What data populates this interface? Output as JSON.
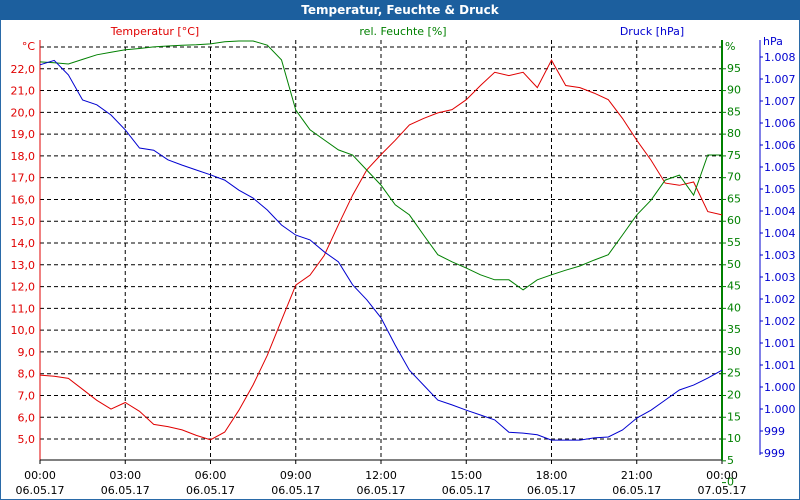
{
  "title": "Temperatur, Feuchte & Druck",
  "colors": {
    "temperature": "#e00000",
    "humidity": "#008000",
    "pressure": "#0000d0",
    "title_bar": "#1c5f9e"
  },
  "chart_data": {
    "type": "line",
    "title": "Temperatur, Feuchte & Druck",
    "legend": [
      "Temperatur [°C]",
      "rel. Feuchte [%]",
      "Druck [hPa]"
    ],
    "axes": {
      "temperature": {
        "unit": "°C",
        "ticks": [
          "22,0",
          "21,0",
          "20,0",
          "19,0",
          "18,0",
          "17,0",
          "16,0",
          "15,0",
          "14,0",
          "13,0",
          "12,0",
          "11,0",
          "10,0",
          "9,0",
          "8,0",
          "7,0",
          "6,0",
          "5,0"
        ],
        "range": [
          4.1,
          23.0
        ]
      },
      "humidity": {
        "unit": "%",
        "ticks": [
          "95",
          "90",
          "85",
          "80",
          "75",
          "70",
          "65",
          "60",
          "55",
          "50",
          "45",
          "40",
          "35",
          "30",
          "25",
          "20",
          "15",
          "10",
          "5",
          "0"
        ],
        "range": [
          0,
          98.6
        ]
      },
      "pressure": {
        "unit": "hPa",
        "ticks": [
          "1.008",
          "1.007",
          "1.007",
          "1.006",
          "1.006",
          "1.005",
          "1.005",
          "1.004",
          "1.004",
          "1.003",
          "1.003",
          "1.002",
          "1.002",
          "1.001",
          "1.001",
          "1.000",
          "1.000",
          "999",
          "999"
        ],
        "range": [
          999.0,
          1008.5
        ]
      }
    },
    "x_ticks": [
      {
        "time": "00:00",
        "date": "06.05.17"
      },
      {
        "time": "03:00",
        "date": "06.05.17"
      },
      {
        "time": "06:00",
        "date": "06.05.17"
      },
      {
        "time": "09:00",
        "date": "06.05.17"
      },
      {
        "time": "12:00",
        "date": "06.05.17"
      },
      {
        "time": "15:00",
        "date": "06.05.17"
      },
      {
        "time": "18:00",
        "date": "06.05.17"
      },
      {
        "time": "21:00",
        "date": "06.05.17"
      },
      {
        "time": "00:00",
        "date": "07.05.17"
      }
    ],
    "x_hours": [
      0,
      0.5,
      1,
      1.5,
      2,
      2.5,
      3,
      3.5,
      4,
      4.5,
      5,
      5.5,
      6,
      6.5,
      7,
      7.5,
      8,
      8.5,
      9,
      9.5,
      10,
      10.5,
      11,
      11.5,
      12,
      12.5,
      13,
      13.5,
      14,
      14.5,
      15,
      15.5,
      16,
      16.5,
      17,
      17.5,
      18,
      18.5,
      19,
      19.5,
      20,
      20.5,
      21,
      21.5,
      22,
      22.5,
      23,
      23.5,
      24
    ],
    "series": [
      {
        "name": "Temperatur [°C]",
        "axis": "temperature",
        "values": [
          8.05,
          8.0,
          7.9,
          7.4,
          6.9,
          6.5,
          6.8,
          6.4,
          5.8,
          5.7,
          5.55,
          5.3,
          5.1,
          5.45,
          6.45,
          7.6,
          8.95,
          10.55,
          12.15,
          12.6,
          13.5,
          14.9,
          16.25,
          17.4,
          18.1,
          18.75,
          19.45,
          19.75,
          20.0,
          20.15,
          20.6,
          21.25,
          21.85,
          21.7,
          21.85,
          21.15,
          22.4,
          21.25,
          21.15,
          20.9,
          20.6,
          19.75,
          18.75,
          17.85,
          16.8,
          16.7,
          16.85,
          15.5,
          15.35
        ]
      },
      {
        "name": "rel. Feuchte [%]",
        "axis": "humidity",
        "values": [
          95,
          94.8,
          94.5,
          95.6,
          96.7,
          97.3,
          97.9,
          98.2,
          98.6,
          98.8,
          99,
          99.1,
          99.3,
          99.8,
          100,
          100,
          99,
          95.5,
          83.5,
          78.8,
          76.4,
          74,
          72.8,
          69.2,
          65.6,
          60.9,
          58.5,
          53.7,
          49,
          47.3,
          45.8,
          44.2,
          43,
          43,
          40.6,
          43,
          44.2,
          45.3,
          46.3,
          47.7,
          49,
          53.7,
          58.5,
          62,
          66.8,
          68,
          63.2,
          72.8,
          72.8
        ]
      },
      {
        "name": "Druck [hPa]",
        "axis": "pressure",
        "values": [
          1008.1,
          1008.2,
          1007.87,
          1007.3,
          1007.19,
          1006.96,
          1006.62,
          1006.21,
          1006.16,
          1005.94,
          1005.82,
          1005.71,
          1005.6,
          1005.48,
          1005.25,
          1005.07,
          1004.8,
          1004.46,
          1004.23,
          1004.12,
          1003.85,
          1003.62,
          1003.1,
          1002.76,
          1002.35,
          1001.73,
          1001.16,
          1000.82,
          1000.48,
          1000.37,
          1000.25,
          1000.14,
          1000.03,
          999.75,
          999.73,
          999.69,
          999.57,
          999.57,
          999.57,
          999.62,
          999.64,
          999.8,
          1000.07,
          1000.25,
          1000.48,
          1000.71,
          1000.82,
          1000.98,
          1001.16
        ]
      }
    ]
  }
}
